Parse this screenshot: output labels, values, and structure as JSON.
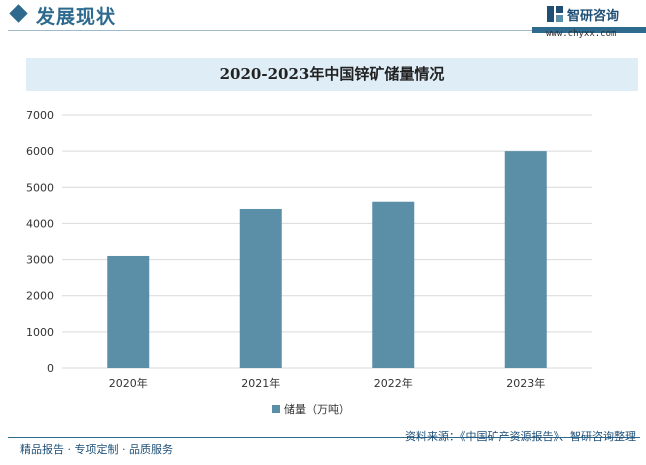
{
  "header": {
    "section_title": "发展现状",
    "brand_name": "智研咨询",
    "brand_url": "www.chyxx.com"
  },
  "colors": {
    "accent": "#2e6a8e",
    "bar": "#5b8fa8",
    "title_band": "#dfeef6"
  },
  "chart_data": {
    "type": "bar",
    "title": "2020-2023年中国锌矿储量情况",
    "categories": [
      "2020年",
      "2021年",
      "2022年",
      "2023年"
    ],
    "series": [
      {
        "name": "储量（万吨）",
        "values": [
          3100,
          4400,
          4600,
          6000
        ]
      }
    ],
    "ylim": [
      0,
      7000
    ],
    "yticks": [
      0,
      1000,
      2000,
      3000,
      4000,
      5000,
      6000,
      7000
    ],
    "grid": true,
    "legend": "bottom"
  },
  "footer": {
    "left": "精品报告 · 专项定制 · 品质服务",
    "right": "资料来源：《中国矿产资源报告》、智研咨询整理"
  }
}
